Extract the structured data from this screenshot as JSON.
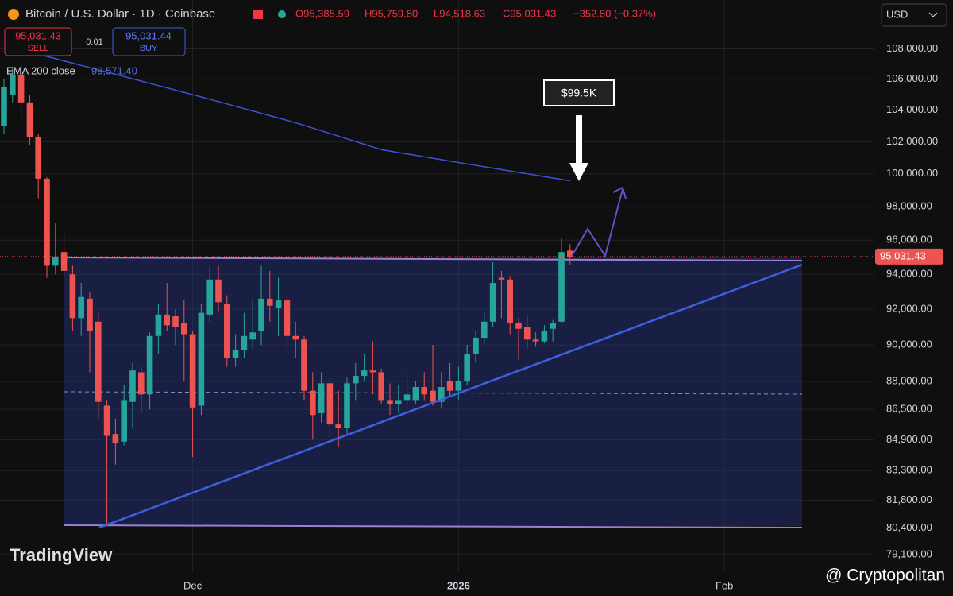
{
  "header": {
    "symbol": "Bitcoin / U.S. Dollar · 1D · Coinbase",
    "open_label": "O95,385.59",
    "high_label": "H95,759.80",
    "low_label": "L94,518.63",
    "close_label": "C95,031.43",
    "change_label": "−352.80 (−0.37%)",
    "sell_price": "95,031.43",
    "sell": "SELL",
    "spread": "0.01",
    "buy_price": "95,031.44",
    "buy": "BUY",
    "currency": "USD",
    "logo": "TradingView",
    "watermark": "@ Cryptopolitan"
  },
  "chart_data": {
    "type": "candlestick",
    "log_scale": true,
    "grid": true,
    "up_color": "#26a69a",
    "down_color": "#ef5350",
    "categories": [
      null,
      null,
      null,
      null,
      null,
      null,
      null,
      null,
      null,
      null,
      null,
      null,
      null,
      null,
      null,
      null,
      null,
      null,
      null,
      null,
      null,
      null,
      null,
      null,
      null,
      null,
      null,
      null,
      null,
      null,
      null,
      null,
      null,
      null,
      null,
      null,
      null,
      null,
      null,
      null,
      null,
      null,
      null,
      null,
      null,
      null,
      null,
      null,
      null,
      null,
      null,
      null,
      null,
      null,
      null,
      null,
      null,
      null,
      null,
      null,
      null,
      null,
      null,
      null,
      null,
      null,
      null
    ],
    "open": [
      103000,
      105000,
      106300,
      104500,
      102300,
      99700,
      94500,
      95300,
      94000,
      91500,
      92600,
      91300,
      86700,
      85200,
      84800,
      86900,
      88500,
      87300,
      90500,
      91700,
      91600,
      91200,
      90600,
      86700,
      91700,
      93700,
      92300,
      89300,
      89700,
      90300,
      90800,
      92600,
      92100,
      92500,
      90500,
      90300,
      87500,
      86300,
      87900,
      85700,
      85500,
      87900,
      88300,
      88600,
      88500,
      87000,
      86800,
      87000,
      87000,
      87700,
      87500,
      86900,
      88000,
      87500,
      88000,
      89500,
      90400,
      91300,
      93800,
      93700,
      91200,
      91000,
      90300,
      90200,
      90900,
      91300,
      95385.59
    ],
    "high": [
      106000,
      106800,
      107000,
      105000,
      102500,
      99800,
      97000,
      96500,
      94500,
      93500,
      93000,
      91800,
      87000,
      86000,
      87800,
      89000,
      88800,
      90700,
      92300,
      93500,
      92000,
      92500,
      90800,
      92300,
      94400,
      94500,
      92800,
      90600,
      91800,
      92500,
      94500,
      94200,
      93800,
      92800,
      91300,
      90500,
      88500,
      88500,
      88300,
      87500,
      88200,
      89000,
      89500,
      90200,
      88700,
      87900,
      87800,
      88500,
      88000,
      88500,
      90000,
      88500,
      89000,
      88800,
      90000,
      90800,
      91800,
      94700,
      94200,
      93900,
      91500,
      91700,
      90700,
      91100,
      91400,
      96100,
      95759.8
    ],
    "low": [
      102500,
      104500,
      103500,
      101800,
      98500,
      93800,
      94000,
      93800,
      90800,
      90500,
      88500,
      86000,
      80500,
      83600,
      84600,
      85500,
      86300,
      86500,
      89500,
      90800,
      90000,
      88000,
      84000,
      86200,
      91300,
      91800,
      88800,
      88800,
      89300,
      89800,
      90000,
      91300,
      90500,
      89800,
      89300,
      87000,
      84900,
      85800,
      85000,
      84500,
      85200,
      87000,
      88000,
      87300,
      86800,
      86200,
      86300,
      86600,
      86800,
      87000,
      86700,
      86600,
      87200,
      87000,
      87800,
      89000,
      90000,
      91000,
      91500,
      90600,
      89200,
      89800,
      89900,
      90100,
      90200,
      91200,
      94518.63
    ],
    "close": [
      105500,
      106300,
      104500,
      102300,
      99700,
      94500,
      95000,
      94200,
      91500,
      92700,
      90800,
      86900,
      85100,
      84700,
      87000,
      88600,
      87300,
      90500,
      91700,
      91100,
      91000,
      90600,
      86600,
      91800,
      93700,
      92400,
      89300,
      89700,
      90500,
      90700,
      92600,
      92200,
      92500,
      90500,
      90300,
      87500,
      86200,
      87900,
      85700,
      85500,
      87900,
      88300,
      88600,
      88500,
      87000,
      86800,
      87000,
      87300,
      87700,
      87300,
      86900,
      87700,
      87500,
      88000,
      89500,
      90400,
      91300,
      93500,
      93700,
      91200,
      90900,
      90300,
      90200,
      90800,
      91200,
      95300,
      95031.43
    ],
    "ema": {
      "name": "EMA 200 close",
      "color": "#3f51d8",
      "value_label": "99,571.40",
      "values": [
        108300,
        108140,
        107980,
        107820,
        107660,
        107500,
        107353,
        107206,
        107059,
        106912,
        106765,
        106618,
        106471,
        106324,
        106176,
        106029,
        105882,
        105735,
        105588,
        105441,
        105294,
        105147,
        105000,
        104850,
        104700,
        104550,
        104400,
        104250,
        104100,
        103950,
        103800,
        103650,
        103500,
        103350,
        103200,
        103030,
        102860,
        102690,
        102520,
        102350,
        102180,
        102010,
        101840,
        101670,
        101500,
        101411,
        101322,
        101233,
        101144,
        101056,
        100967,
        100878,
        100789,
        100700,
        100613,
        100526,
        100439,
        100353,
        100266,
        100179,
        100092,
        100005,
        99918,
        99831,
        99745,
        99658,
        99571.4
      ]
    },
    "last_price": 95031.43,
    "last_price_label": "95,031.43",
    "annotation": "$99.5K",
    "ylim": [
      78250,
      111300
    ],
    "yticks": [
      {
        "value": 108000,
        "label": "108,000.00"
      },
      {
        "value": 106000,
        "label": "106,000.00"
      },
      {
        "value": 104000,
        "label": "104,000.00"
      },
      {
        "value": 102000,
        "label": "102,000.00"
      },
      {
        "value": 100000,
        "label": "100,000.00"
      },
      {
        "value": 98000,
        "label": "98,000.00"
      },
      {
        "value": 96000,
        "label": "96,000.00"
      },
      {
        "value": 94000,
        "label": "94,000.00"
      },
      {
        "value": 92000,
        "label": "92,000.00"
      },
      {
        "value": 90000,
        "label": "90,000.00"
      },
      {
        "value": 88000,
        "label": "88,000.00"
      },
      {
        "value": 86500,
        "label": "86,500.00"
      },
      {
        "value": 84900,
        "label": "84,900.00"
      },
      {
        "value": 83300,
        "label": "83,300.00"
      },
      {
        "value": 81800,
        "label": "81,800.00"
      },
      {
        "value": 80400,
        "label": "80,400.00"
      },
      {
        "value": 79100,
        "label": "79,100.00"
      }
    ],
    "xticks": [
      {
        "value": 22,
        "label": "Dec"
      },
      {
        "value": 53,
        "label": "2026"
      },
      {
        "value": 84,
        "label": "Feb"
      }
    ]
  }
}
